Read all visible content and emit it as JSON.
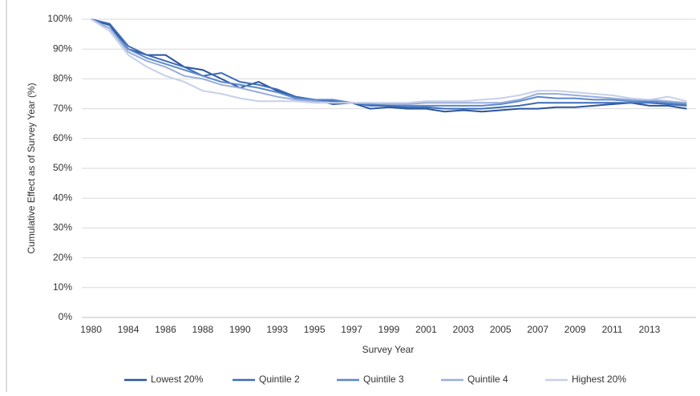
{
  "chart_data": {
    "type": "line",
    "y_label": "Cumulative Effect as of Survey Year (%)",
    "x_label": "Survey Year",
    "categories": [
      "1980",
      null,
      "1984",
      null,
      "1986",
      null,
      "1988",
      null,
      "1990",
      null,
      "1993",
      null,
      "1995",
      null,
      "1997",
      null,
      "1999",
      null,
      "2001",
      null,
      "2003",
      null,
      "2005",
      null,
      "2007",
      null,
      "2009",
      null,
      "2011",
      null,
      "2013",
      null,
      null
    ],
    "ylim": [
      0,
      100
    ],
    "yticks": [
      {
        "value": 0,
        "label": "0%"
      },
      {
        "value": 10,
        "label": "10%"
      },
      {
        "value": 20,
        "label": "20%"
      },
      {
        "value": 30,
        "label": "30%"
      },
      {
        "value": 40,
        "label": "40%"
      },
      {
        "value": 50,
        "label": "50%"
      },
      {
        "value": 60,
        "label": "60%"
      },
      {
        "value": 70,
        "label": "70%"
      },
      {
        "value": 80,
        "label": "80%"
      },
      {
        "value": 90,
        "label": "90%"
      },
      {
        "value": 100,
        "label": "100%"
      }
    ],
    "grid": true,
    "legend": "bottom",
    "series": [
      {
        "name": "Lowest 20%",
        "color": "#2b559b",
        "values": [
          100,
          98,
          90,
          88,
          88,
          84,
          83,
          80,
          77,
          79,
          76,
          74,
          73,
          71.5,
          72,
          70,
          70.5,
          70,
          70,
          69,
          69.5,
          69,
          69.5,
          70,
          70,
          70.5,
          70.5,
          71,
          71.5,
          72,
          71,
          71,
          70
        ]
      },
      {
        "name": "Quintile 2",
        "color": "#3c6cb8",
        "values": [
          100,
          98.5,
          91,
          88,
          86,
          84,
          81,
          82,
          79,
          78,
          76.5,
          74,
          73,
          72.5,
          72,
          71,
          71,
          70.5,
          70.5,
          70,
          70,
          70,
          70.5,
          71,
          72,
          72,
          72,
          72,
          72,
          72,
          72,
          71.5,
          71
        ]
      },
      {
        "name": "Quintile 3",
        "color": "#5b88c9",
        "values": [
          100,
          97,
          90,
          87,
          85,
          83,
          81,
          79,
          78,
          77,
          75.5,
          73.5,
          73,
          73,
          72,
          71.5,
          71.5,
          71,
          71,
          71,
          71,
          71,
          71.5,
          72.5,
          74,
          73.5,
          73.5,
          73,
          73,
          72.5,
          72.5,
          72,
          71.5
        ]
      },
      {
        "name": "Quintile 4",
        "color": "#99addb",
        "values": [
          100,
          97,
          89,
          86,
          84,
          81,
          80,
          78,
          77,
          75.5,
          74,
          73,
          72.5,
          72,
          72,
          72,
          71.5,
          71.5,
          72,
          72,
          72,
          72,
          72,
          73,
          75,
          75,
          74.5,
          74,
          73.5,
          73,
          73,
          72.5,
          72
        ]
      },
      {
        "name": "Highest 20%",
        "color": "#c6d0e9",
        "values": [
          100,
          96,
          88,
          84,
          81,
          79,
          76,
          75,
          73.5,
          72.5,
          72.5,
          72.5,
          72,
          72,
          72,
          72,
          72,
          72,
          72.5,
          72.5,
          72.5,
          73,
          73.5,
          74.5,
          76,
          76,
          75.5,
          75,
          74.5,
          73.5,
          73,
          74,
          72.5
        ]
      }
    ]
  }
}
